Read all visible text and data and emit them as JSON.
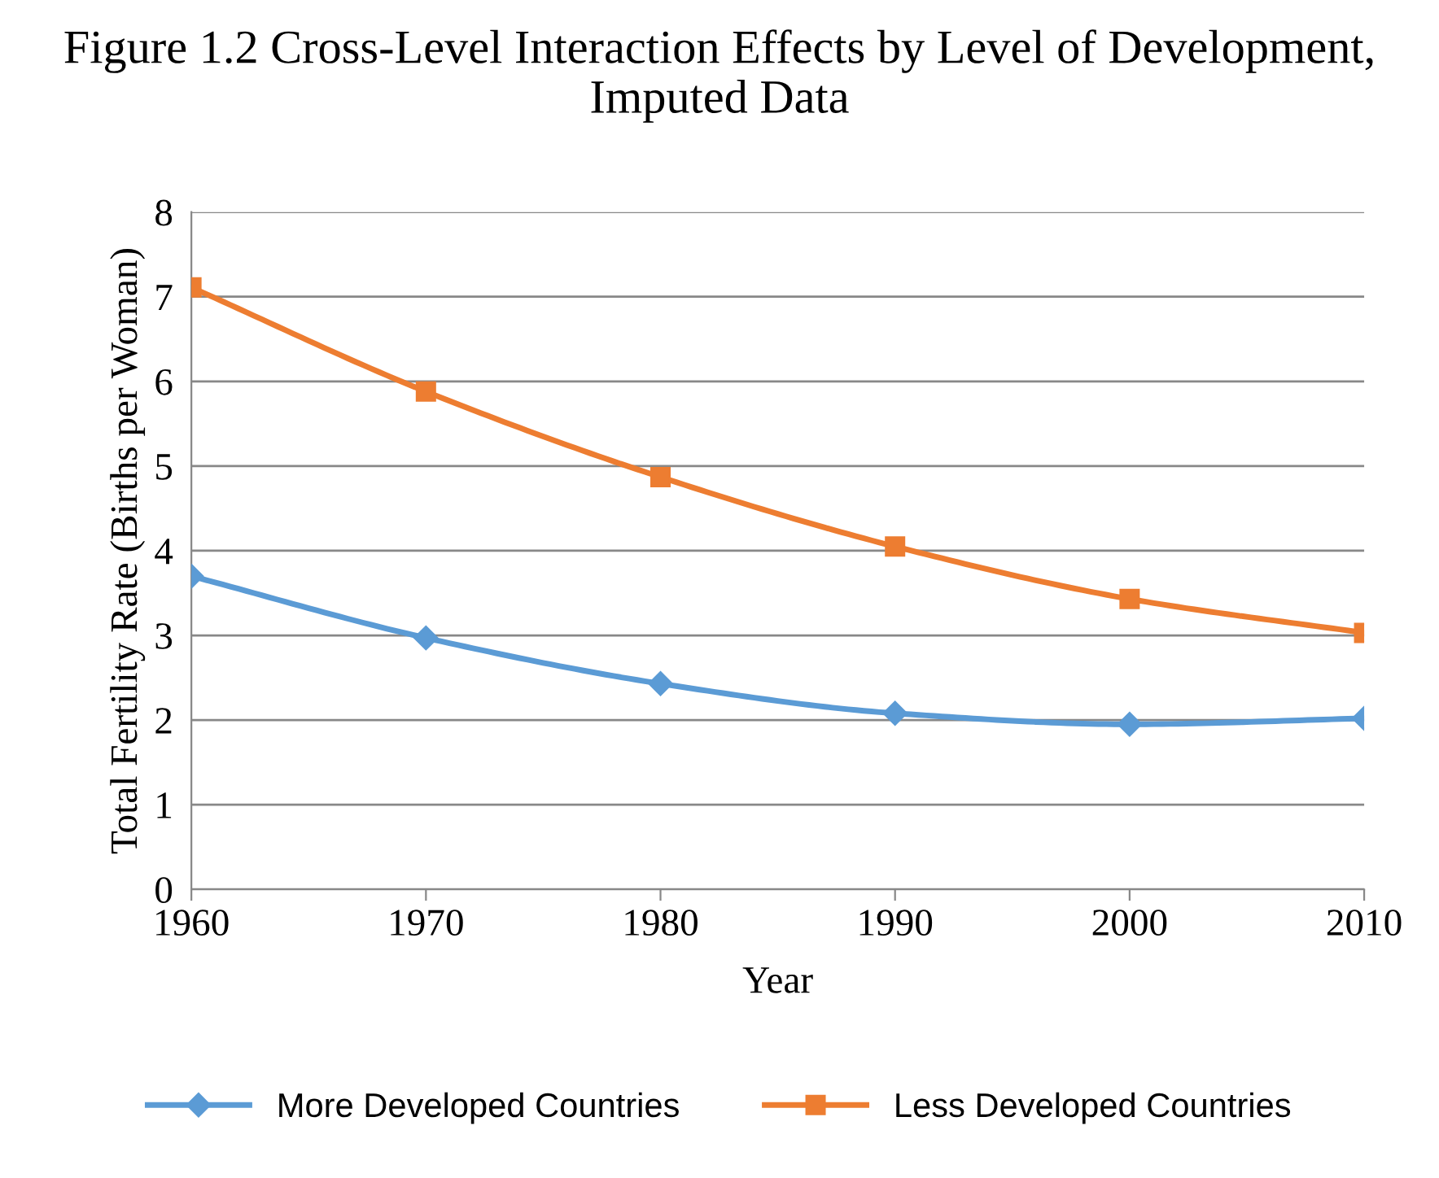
{
  "chart_data": {
    "type": "line",
    "title": "Figure 1.2 Cross-Level Interaction Effects by Level of Development, Imputed Data",
    "xlabel": "Year",
    "ylabel": "Total Fertility Rate (Births per Woman)",
    "x": [
      1960,
      1970,
      1980,
      1990,
      2000,
      2010
    ],
    "series": [
      {
        "name": "More Developed Countries",
        "color": "#5b9bd5",
        "marker": "diamond",
        "values": [
          3.7,
          2.97,
          2.43,
          2.08,
          1.95,
          2.02
        ]
      },
      {
        "name": "Less Developed Countries",
        "color": "#ed7d31",
        "marker": "square",
        "values": [
          7.11,
          5.88,
          4.87,
          4.05,
          3.43,
          3.03
        ]
      }
    ],
    "xlim": [
      1960,
      2010
    ],
    "xticks": [
      1960,
      1970,
      1980,
      1990,
      2000,
      2010
    ],
    "ylim": [
      0,
      8
    ],
    "yticks": [
      0,
      1,
      2,
      3,
      4,
      5,
      6,
      7,
      8
    ],
    "grid": "y",
    "legend": "bottom",
    "line_style": "solid"
  }
}
